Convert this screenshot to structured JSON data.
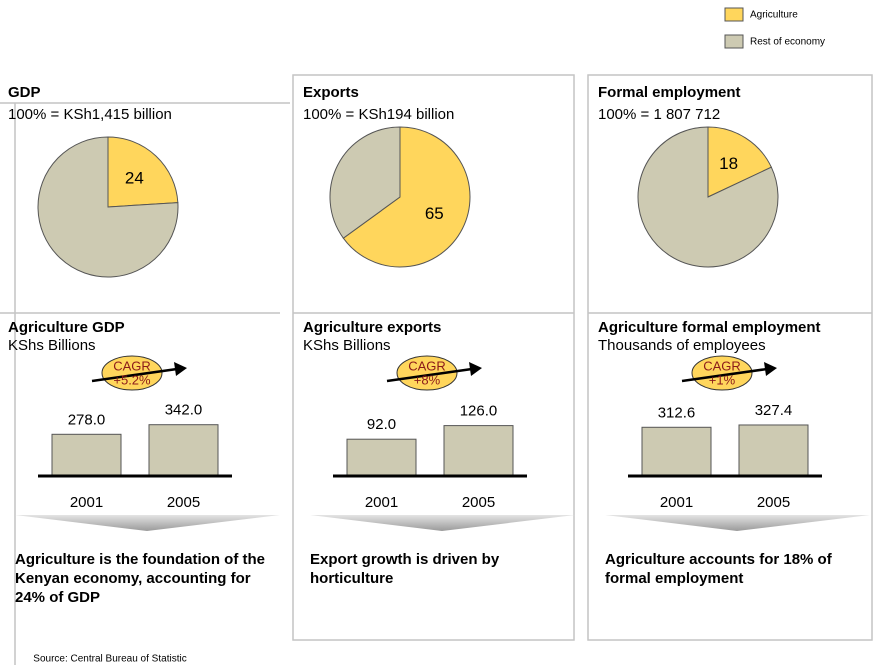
{
  "chart_data": [
    {
      "type": "pie",
      "title": "GDP",
      "subtitle": "100% = KSh1,415 billion",
      "categories": [
        "Agriculture",
        "Rest of economy"
      ],
      "values": [
        24,
        76
      ],
      "colors": [
        "#ffd65c",
        "#cdcab2"
      ]
    },
    {
      "type": "bar",
      "title": "Agriculture GDP",
      "subtitle": "KShs Billions",
      "categories": [
        "2001",
        "2005"
      ],
      "values": [
        278.0,
        342.0
      ],
      "value_labels": [
        "278.0",
        "342.0"
      ],
      "annotations": [
        "CAGR",
        "+5.2%"
      ],
      "color": "#cdcab2",
      "ylim": [
        0,
        400
      ]
    },
    {
      "type": "pie",
      "title": "Exports",
      "subtitle": "100% = KSh194 billion",
      "categories": [
        "Agriculture",
        "Rest of economy"
      ],
      "values": [
        65,
        35
      ],
      "colors": [
        "#ffd65c",
        "#cdcab2"
      ]
    },
    {
      "type": "bar",
      "title": "Agriculture exports",
      "subtitle": "KShs Billions",
      "categories": [
        "2001",
        "2005"
      ],
      "values": [
        92.0,
        126.0
      ],
      "value_labels": [
        "92.0",
        "126.0"
      ],
      "annotations": [
        "CAGR",
        "+8%"
      ],
      "color": "#cdcab2",
      "ylim": [
        0,
        150
      ]
    },
    {
      "type": "pie",
      "title": "Formal employment",
      "subtitle": "100% = 1 807 712",
      "categories": [
        "Agriculture",
        "Rest of economy"
      ],
      "values": [
        18,
        82
      ],
      "colors": [
        "#ffd65c",
        "#cdcab2"
      ]
    },
    {
      "type": "bar",
      "title": "Agriculture formal employment",
      "subtitle": "Thousands of employees",
      "categories": [
        "2001",
        "2005"
      ],
      "values": [
        312.6,
        327.4
      ],
      "value_labels": [
        "312.6",
        "327.4"
      ],
      "annotations": [
        "CAGR",
        "+1%"
      ],
      "color": "#cdcab2",
      "ylim": [
        0,
        385
      ]
    }
  ],
  "conclusions": [
    "Agriculture is the foundation of the Kenyan economy, accounting for 24% of GDP",
    "Export growth is driven by horticulture",
    "Agriculture accounts for 18% of formal employment"
  ],
  "source": "Source: Central Bureau of Statistic"
}
